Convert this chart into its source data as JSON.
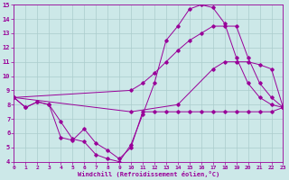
{
  "xlabel": "Windchill (Refroidissement éolien,°C)",
  "bg_color": "#cce8e8",
  "grid_color": "#aacccc",
  "line_color": "#990099",
  "xlim": [
    0,
    23
  ],
  "ylim": [
    4,
    15
  ],
  "xticks": [
    0,
    1,
    2,
    3,
    4,
    5,
    6,
    7,
    8,
    9,
    10,
    11,
    12,
    13,
    14,
    15,
    16,
    17,
    18,
    19,
    20,
    21,
    22,
    23
  ],
  "yticks": [
    4,
    5,
    6,
    7,
    8,
    9,
    10,
    11,
    12,
    13,
    14,
    15
  ],
  "series": [
    {
      "x": [
        0,
        1,
        2,
        3,
        4,
        5,
        6,
        7,
        8,
        9,
        10,
        11,
        12,
        13,
        14,
        15,
        16,
        17,
        18,
        19,
        20,
        21,
        22,
        23
      ],
      "y": [
        8.5,
        7.8,
        8.2,
        8.0,
        5.7,
        5.5,
        6.3,
        5.3,
        4.8,
        4.2,
        5.0,
        7.5,
        7.5,
        7.5,
        7.5,
        7.5,
        7.5,
        7.5,
        7.5,
        7.5,
        7.5,
        7.5,
        7.5,
        7.8
      ]
    },
    {
      "x": [
        0,
        1,
        2,
        3,
        4,
        5,
        6,
        7,
        8,
        9,
        10,
        11,
        12,
        13,
        14,
        15,
        16,
        17,
        18,
        19,
        20,
        21,
        22,
        23
      ],
      "y": [
        8.5,
        7.8,
        8.2,
        8.0,
        6.8,
        5.6,
        5.4,
        4.5,
        4.2,
        4.0,
        5.2,
        7.3,
        9.5,
        12.5,
        13.5,
        14.7,
        15.0,
        14.8,
        13.7,
        11.3,
        9.5,
        8.5,
        8.0,
        7.8
      ]
    },
    {
      "x": [
        0,
        10,
        11,
        12,
        13,
        14,
        15,
        16,
        17,
        18,
        19,
        20,
        21,
        22,
        23
      ],
      "y": [
        8.5,
        9.0,
        9.5,
        10.2,
        11.0,
        11.8,
        12.5,
        13.0,
        13.5,
        13.5,
        13.5,
        11.3,
        9.5,
        8.5,
        7.8
      ]
    },
    {
      "x": [
        0,
        10,
        14,
        17,
        18,
        19,
        20,
        21,
        22,
        23
      ],
      "y": [
        8.5,
        7.5,
        8.0,
        10.5,
        11.0,
        11.0,
        11.0,
        10.8,
        10.5,
        7.8
      ]
    }
  ]
}
